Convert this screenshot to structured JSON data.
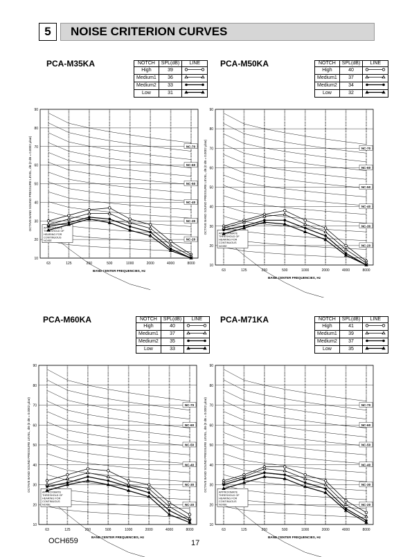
{
  "header": {
    "section_number": "5",
    "title": "NOISE CRITERION CURVES"
  },
  "footer": {
    "code": "OCH659",
    "page": "17"
  },
  "table_headers": [
    "NOTCH",
    "SPL(dB)",
    "LINE"
  ],
  "axis": {
    "ylabel": "OCTAVE BAND SOUND PRESSURE LEVEL, dB (0 dB = 0.0002 µbar)",
    "xlabel": "BAND CENTER FREQUENCIES, Hz",
    "xticks": [
      "63",
      "125",
      "250",
      "500",
      "1000",
      "2000",
      "4000",
      "8000"
    ],
    "yticks": [
      "10",
      "20",
      "30",
      "40",
      "50",
      "60",
      "70",
      "80",
      "90"
    ]
  },
  "threshold_note": [
    "APPROXIMATE",
    "THRESHOLD OF",
    "HEARING FOR",
    "CONTINUOUS",
    "NOISE"
  ],
  "nc_labels": [
    "NC-70",
    "NC-60",
    "NC-50",
    "NC-40",
    "NC-30",
    "NC-20"
  ],
  "units": [
    {
      "model": "PCA-M35KA",
      "rows": [
        {
          "notch": "High",
          "spl": "39",
          "marker": "open-circle"
        },
        {
          "notch": "Medium1",
          "spl": "36",
          "marker": "open-triangle"
        },
        {
          "notch": "Medium2",
          "spl": "33",
          "marker": "filled-circle"
        },
        {
          "notch": "Low",
          "spl": "31",
          "marker": "filled-triangle"
        }
      ]
    },
    {
      "model": "PCA-M50KA",
      "rows": [
        {
          "notch": "High",
          "spl": "40",
          "marker": "open-circle"
        },
        {
          "notch": "Medium1",
          "spl": "37",
          "marker": "open-triangle"
        },
        {
          "notch": "Medium2",
          "spl": "34",
          "marker": "filled-circle"
        },
        {
          "notch": "Low",
          "spl": "32",
          "marker": "filled-triangle"
        }
      ]
    },
    {
      "model": "PCA-M60KA",
      "rows": [
        {
          "notch": "High",
          "spl": "40",
          "marker": "open-circle"
        },
        {
          "notch": "Medium1",
          "spl": "37",
          "marker": "open-triangle"
        },
        {
          "notch": "Medium2",
          "spl": "35",
          "marker": "filled-circle"
        },
        {
          "notch": "Low",
          "spl": "33",
          "marker": "filled-triangle"
        }
      ]
    },
    {
      "model": "PCA-M71KA",
      "rows": [
        {
          "notch": "High",
          "spl": "41",
          "marker": "open-circle"
        },
        {
          "notch": "Medium1",
          "spl": "39",
          "marker": "open-triangle"
        },
        {
          "notch": "Medium2",
          "spl": "37",
          "marker": "filled-circle"
        },
        {
          "notch": "Low",
          "spl": "35",
          "marker": "filled-triangle"
        }
      ]
    }
  ],
  "chart_data": [
    {
      "type": "line",
      "title": "PCA-M35KA",
      "x": [
        "63",
        "125",
        "250",
        "500",
        "1000",
        "2000",
        "4000",
        "8000"
      ],
      "ylim": [
        10,
        90
      ],
      "series": [
        {
          "name": "High",
          "values": [
            30,
            33,
            36,
            37,
            31,
            28,
            19,
            12
          ]
        },
        {
          "name": "Medium1",
          "values": [
            28,
            31,
            34,
            34,
            29,
            26,
            17,
            11
          ]
        },
        {
          "name": "Medium2",
          "values": [
            27,
            29,
            32,
            31,
            27,
            24,
            15,
            10
          ]
        },
        {
          "name": "Low",
          "values": [
            25,
            28,
            31,
            29,
            25,
            22,
            14,
            10
          ]
        }
      ]
    },
    {
      "type": "line",
      "title": "PCA-M50KA",
      "x": [
        "63",
        "125",
        "250",
        "500",
        "1000",
        "2000",
        "4000",
        "8000"
      ],
      "ylim": [
        10,
        90
      ],
      "series": [
        {
          "name": "High",
          "values": [
            30,
            33,
            36,
            38,
            33,
            29,
            20,
            12
          ]
        },
        {
          "name": "Medium1",
          "values": [
            29,
            32,
            35,
            36,
            31,
            27,
            18,
            11
          ]
        },
        {
          "name": "Medium2",
          "values": [
            28,
            30,
            33,
            33,
            29,
            25,
            16,
            10
          ]
        },
        {
          "name": "Low",
          "values": [
            26,
            29,
            32,
            31,
            27,
            23,
            15,
            10
          ]
        }
      ]
    },
    {
      "type": "line",
      "title": "PCA-M60KA",
      "x": [
        "63",
        "125",
        "250",
        "500",
        "1000",
        "2000",
        "4000",
        "8000"
      ],
      "ylim": [
        10,
        90
      ],
      "series": [
        {
          "name": "High",
          "values": [
            32,
            35,
            38,
            37,
            32,
            30,
            21,
            15
          ]
        },
        {
          "name": "Medium1",
          "values": [
            30,
            33,
            36,
            34,
            30,
            28,
            19,
            13
          ]
        },
        {
          "name": "Medium2",
          "values": [
            29,
            31,
            34,
            32,
            29,
            26,
            17,
            12
          ]
        },
        {
          "name": "Low",
          "values": [
            27,
            30,
            32,
            30,
            27,
            24,
            15,
            11
          ]
        }
      ]
    },
    {
      "type": "line",
      "title": "PCA-M71KA",
      "x": [
        "63",
        "125",
        "250",
        "500",
        "1000",
        "2000",
        "4000",
        "8000"
      ],
      "ylim": [
        10,
        90
      ],
      "series": [
        {
          "name": "High",
          "values": [
            32,
            35,
            39,
            39,
            35,
            32,
            22,
            16
          ]
        },
        {
          "name": "Medium1",
          "values": [
            31,
            34,
            38,
            37,
            33,
            30,
            20,
            14
          ]
        },
        {
          "name": "Medium2",
          "values": [
            30,
            33,
            36,
            35,
            31,
            28,
            18,
            12
          ]
        },
        {
          "name": "Low",
          "values": [
            28,
            31,
            34,
            33,
            29,
            26,
            17,
            11
          ]
        }
      ]
    }
  ]
}
